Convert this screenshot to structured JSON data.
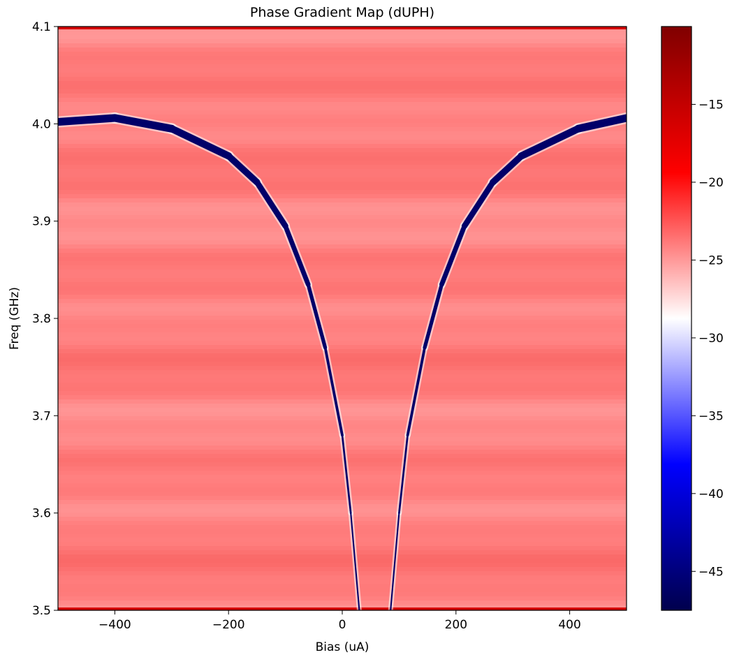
{
  "chart_data": {
    "type": "heatmap",
    "title": "Phase Gradient Map (dUPH)",
    "xlabel": "Bias (uA)",
    "ylabel": "Freq (GHz)",
    "xlim": [
      -500,
      500
    ],
    "ylim": [
      3.5,
      4.1
    ],
    "x_ticks": [
      -400,
      -200,
      0,
      200,
      400
    ],
    "x_tick_labels": [
      "−400",
      "−200",
      "0",
      "200",
      "400"
    ],
    "y_ticks": [
      3.5,
      3.6,
      3.7,
      3.8,
      3.9,
      4.0,
      4.1
    ],
    "y_tick_labels": [
      "3.5",
      "3.6",
      "3.7",
      "3.8",
      "3.9",
      "4.0",
      "4.1"
    ],
    "colorbar": {
      "colormap": "seismic",
      "range": [
        -47.5,
        -10.0
      ],
      "ticks": [
        -45,
        -40,
        -35,
        -30,
        -25,
        -20,
        -15
      ],
      "tick_labels": [
        "−45",
        "−40",
        "−35",
        "−30",
        "−25",
        "−20",
        "−15"
      ]
    },
    "background_level": -24,
    "feature": {
      "description": "two dark blue branches of one dip curve",
      "level": -46,
      "points": [
        {
          "x": -500,
          "y": 4.002
        },
        {
          "x": -400,
          "y": 4.006
        },
        {
          "x": -300,
          "y": 3.995
        },
        {
          "x": -200,
          "y": 3.967
        },
        {
          "x": -150,
          "y": 3.94
        },
        {
          "x": -100,
          "y": 3.895
        },
        {
          "x": -60,
          "y": 3.835
        },
        {
          "x": -30,
          "y": 3.77
        },
        {
          "x": 0,
          "y": 3.68
        },
        {
          "x": 15,
          "y": 3.6
        },
        {
          "x": 30,
          "y": 3.5
        },
        {
          "x": 85,
          "y": 3.5
        },
        {
          "x": 100,
          "y": 3.6
        },
        {
          "x": 115,
          "y": 3.68
        },
        {
          "x": 145,
          "y": 3.77
        },
        {
          "x": 175,
          "y": 3.835
        },
        {
          "x": 215,
          "y": 3.895
        },
        {
          "x": 265,
          "y": 3.94
        },
        {
          "x": 315,
          "y": 3.967
        },
        {
          "x": 415,
          "y": 3.995
        },
        {
          "x": 500,
          "y": 4.006
        }
      ]
    }
  }
}
